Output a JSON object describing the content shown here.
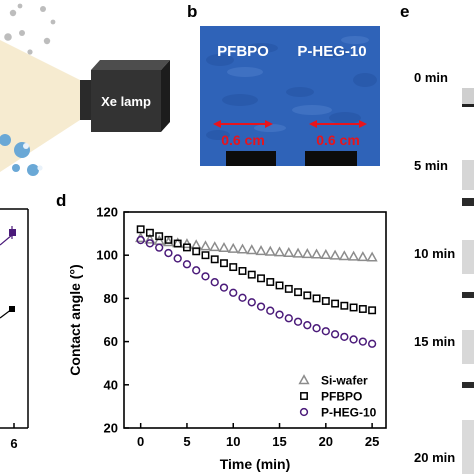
{
  "panels": {
    "b_letter": "b",
    "d_letter": "d",
    "e_letter": "e"
  },
  "panel_a": {
    "lamp_label": "Xe lamp",
    "x_tick_visible": "6"
  },
  "panel_b": {
    "left_label": "PFBPO",
    "right_label": "P-HEG-10",
    "left_scale": "0.6 cm",
    "right_scale": "0.6 cm",
    "scale_color": "#e8141c",
    "background_color": "#2f63b8"
  },
  "panel_e": {
    "time_labels": [
      "0 min",
      "5 min",
      "10 min",
      "15 min",
      "20 min"
    ]
  },
  "chart_data": {
    "type": "scatter",
    "xlabel": "Time (min)",
    "ylabel": "Contact angle (°)",
    "xlim": [
      -1.8,
      26.5
    ],
    "ylim": [
      20,
      120
    ],
    "x_ticks": [
      0,
      5,
      10,
      15,
      20,
      25
    ],
    "y_ticks": [
      20,
      40,
      60,
      80,
      100,
      120
    ],
    "grid": false,
    "legend_position": "bottom-right",
    "x": [
      0,
      1,
      2,
      3,
      4,
      5,
      6,
      7,
      8,
      9,
      10,
      11,
      12,
      13,
      14,
      15,
      16,
      17,
      18,
      19,
      20,
      21,
      22,
      23,
      24,
      25
    ],
    "series": [
      {
        "name": "Si-wafer",
        "marker": "triangle",
        "color": "#8c8c8c",
        "values": [
          108,
          107.3,
          106.7,
          106.1,
          105.6,
          105.2,
          104.7,
          104.2,
          103.8,
          103.4,
          103,
          102.7,
          102.4,
          102,
          101.7,
          101.4,
          101.1,
          100.8,
          100.6,
          100.4,
          100.2,
          99.9,
          99.6,
          99.4,
          99.2,
          99
        ]
      },
      {
        "name": "PFBPO",
        "marker": "square",
        "color": "#000000",
        "values": [
          112,
          110.4,
          108.8,
          107.1,
          105.4,
          103.6,
          101.8,
          100,
          98.1,
          96.3,
          94.5,
          92.7,
          91,
          89.3,
          87.6,
          86,
          84.4,
          82.9,
          81.4,
          80,
          78.8,
          77.6,
          76.6,
          75.8,
          75.1,
          74.5
        ]
      },
      {
        "name": "P-HEG-10",
        "marker": "circle",
        "color": "#4b1b7a",
        "values": [
          107,
          105.5,
          103.5,
          101,
          98.5,
          95.8,
          93,
          90.2,
          87.5,
          85,
          82.6,
          80.3,
          78.2,
          76.2,
          74.3,
          72.5,
          70.8,
          69.2,
          67.6,
          66.2,
          64.8,
          63.4,
          62.2,
          61,
          60,
          59
        ]
      }
    ]
  }
}
